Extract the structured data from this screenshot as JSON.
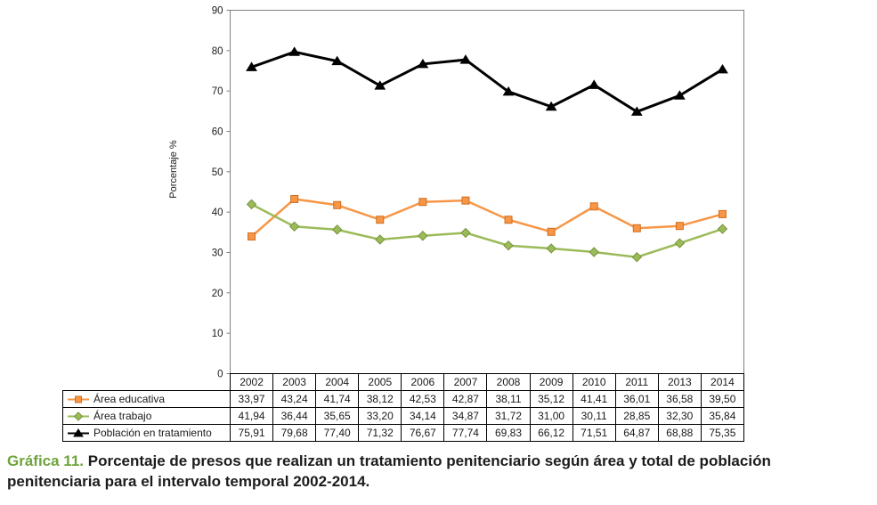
{
  "chart_data": {
    "type": "line",
    "x": [
      "2002",
      "2003",
      "2004",
      "2005",
      "2006",
      "2007",
      "2008",
      "2009",
      "2010",
      "2011",
      "2013",
      "2014"
    ],
    "series": [
      {
        "name": "Área educativa",
        "color": "#F79646",
        "border": "#D16F1F",
        "marker": "square",
        "line_width": 2.5,
        "values": [
          33.97,
          43.24,
          41.74,
          38.12,
          42.53,
          42.87,
          38.11,
          35.12,
          41.41,
          36.01,
          36.58,
          39.5
        ]
      },
      {
        "name": "Área trabajo",
        "color": "#9BBB59",
        "border": "#77933C",
        "marker": "diamond",
        "line_width": 2.5,
        "values": [
          41.94,
          36.44,
          35.65,
          33.2,
          34.14,
          34.87,
          31.72,
          31.0,
          30.11,
          28.85,
          32.3,
          35.84
        ]
      },
      {
        "name": "Población en tratamiento",
        "color": "#000000",
        "border": "#000000",
        "marker": "triangle",
        "line_width": 3,
        "values": [
          75.91,
          79.68,
          77.4,
          71.32,
          76.67,
          77.74,
          69.83,
          66.12,
          71.51,
          64.87,
          68.88,
          75.35
        ]
      }
    ],
    "title": "",
    "xlabel": "",
    "ylabel": "Porcentaje %",
    "ylim": [
      0,
      90
    ],
    "ytick_step": 10,
    "grid": false,
    "legend_position": "table-left",
    "decimal_separator": ","
  },
  "caption": {
    "prefix": "Gráfica 11.",
    "text": "Porcentaje de presos que realizan un tratamiento penitenciario según área y total de población penitenciaria para el intervalo temporal 2002-2014."
  }
}
